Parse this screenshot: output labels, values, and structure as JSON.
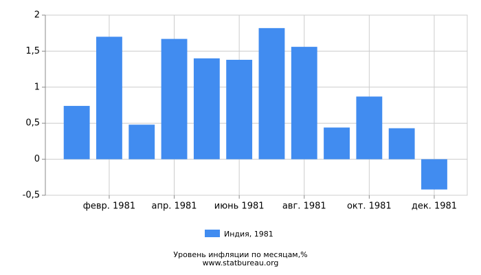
{
  "chart_data": {
    "type": "bar",
    "title": "Уровень инфляции по месяцам,%",
    "subtitle": "www.statbureau.org",
    "categories": [
      null,
      "февр. 1981",
      null,
      "апр. 1981",
      null,
      "июнь 1981",
      null,
      "авг. 1981",
      null,
      "окт. 1981",
      null,
      "дек. 1981"
    ],
    "series": [
      {
        "name": "Индия, 1981",
        "color": "#418cf0",
        "values": [
          0.74,
          1.7,
          0.48,
          1.67,
          1.4,
          1.38,
          1.82,
          1.56,
          0.44,
          0.87,
          0.43,
          -0.42
        ]
      }
    ],
    "ylim": [
      -0.5,
      2
    ],
    "yticks": [
      {
        "value": -0.5,
        "label": "-0,5"
      },
      0,
      {
        "value": 0.5,
        "label": "0,5"
      },
      1,
      {
        "value": 1.5,
        "label": "1,5"
      },
      2
    ],
    "grid": true
  }
}
